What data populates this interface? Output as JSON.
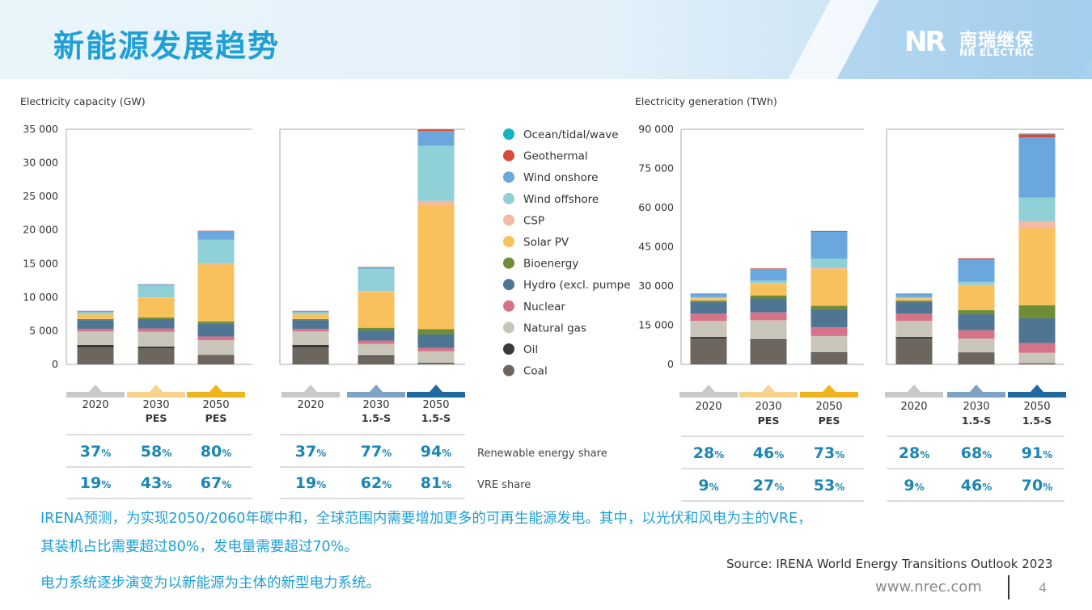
{
  "header": {
    "title": "新能源发展趋势",
    "logo_mark": "NR",
    "logo_cn": "南瑞继保",
    "logo_en": "NR ELECTRIC"
  },
  "colors": {
    "Ocean/tidal/wave": "#17b3c4",
    "Geothermal": "#d94a3a",
    "Wind onshore": "#6aa7de",
    "Wind offshore": "#8fd0d6",
    "CSP": "#f5b9a6",
    "Solar PV": "#f8c15b",
    "Bioenergy": "#6f8c36",
    "Hydro (excl. pumped)": "#4f7594",
    "Nuclear": "#d77388",
    "Natural gas": "#c9c5b9",
    "Oil": "#3a3a3a",
    "Coal": "#6c665f",
    "accent": "#1e9fd6",
    "pct": "#1b86b3"
  },
  "legend": [
    "Ocean/tidal/wave",
    "Geothermal",
    "Wind onshore",
    "Wind offshore",
    "CSP",
    "Solar PV",
    "Bioenergy",
    "Hydro (excl. pumpe",
    "Nuclear",
    "Natural gas",
    "Oil",
    "Coal"
  ],
  "row_labels": {
    "renewable": "Renewable energy share",
    "vre": "VRE share"
  },
  "chart_data": [
    {
      "type": "bar",
      "stacked": true,
      "title": "Electricity capacity (GW)",
      "yticks": [
        "35 000",
        "30 000",
        "25 000",
        "20 000",
        "15 000",
        "10 000",
        "5 000",
        "0"
      ],
      "ylim": [
        0,
        35000
      ],
      "stack_order": [
        "Coal",
        "Oil",
        "Natural gas",
        "Nuclear",
        "Hydro (excl. pumped)",
        "Bioenergy",
        "Solar PV",
        "CSP",
        "Wind offshore",
        "Wind onshore",
        "Geothermal",
        "Ocean/tidal/wave"
      ],
      "groups": [
        {
          "scenario": "PES",
          "bars": [
            {
              "year": "2020",
              "sub": "",
              "renewable": "37",
              "vre": "19",
              "values": [
                2500,
                400,
                2000,
                400,
                1300,
                150,
                700,
                20,
                300,
                200,
                15,
                0
              ]
            },
            {
              "year": "2030",
              "sub": "PES",
              "renewable": "58",
              "vre": "43",
              "values": [
                2400,
                250,
                2200,
                500,
                1400,
                250,
                2900,
                50,
                1800,
                150,
                30,
                0
              ]
            },
            {
              "year": "2050",
              "sub": "PES",
              "renewable": "80",
              "vre": "67",
              "values": [
                1300,
                100,
                2200,
                550,
                1900,
                350,
                8500,
                150,
                3500,
                1300,
                40,
                5
              ]
            }
          ]
        },
        {
          "scenario": "1.5-S",
          "bars": [
            {
              "year": "2020",
              "sub": "",
              "renewable": "37",
              "vre": "19",
              "values": [
                2500,
                400,
                2000,
                400,
                1300,
                150,
                700,
                20,
                300,
                200,
                15,
                0
              ]
            },
            {
              "year": "2030",
              "sub": "1.5-S",
              "renewable": "77",
              "vre": "62",
              "values": [
                1200,
                150,
                1700,
                500,
                1500,
                400,
                5300,
                200,
                3300,
                200,
                50,
                5
              ]
            },
            {
              "year": "2050",
              "sub": "1.5-S",
              "renewable": "94",
              "vre": "81",
              "values": [
                200,
                50,
                1700,
                500,
                2000,
                800,
                18500,
                600,
                8200,
                2200,
                200,
                50
              ]
            }
          ]
        }
      ]
    },
    {
      "type": "bar",
      "stacked": true,
      "title": "Electricity generation (TWh)",
      "yticks": [
        "90 000",
        "75 000",
        "60 000",
        "45 000",
        "30 000",
        "15 000",
        "0"
      ],
      "ylim": [
        0,
        90000
      ],
      "stack_order": [
        "Coal",
        "Oil",
        "Natural gas",
        "Nuclear",
        "Hydro (excl. pumped)",
        "Bioenergy",
        "Solar PV",
        "CSP",
        "Wind offshore",
        "Wind onshore",
        "Geothermal",
        "Ocean/tidal/wave"
      ],
      "groups": [
        {
          "scenario": "PES",
          "bars": [
            {
              "year": "2020",
              "sub": "",
              "renewable": "28",
              "vre": "9",
              "values": [
                9800,
                700,
                6200,
                2700,
                4400,
                600,
                900,
                50,
                400,
                1300,
                100,
                0
              ]
            },
            {
              "year": "2030",
              "sub": "PES",
              "renewable": "46",
              "vre": "27",
              "values": [
                9200,
                400,
                7300,
                3000,
                5300,
                1200,
                4500,
                150,
                1000,
                4500,
                200,
                0
              ]
            },
            {
              "year": "2050",
              "sub": "PES",
              "renewable": "73",
              "vre": "53",
              "values": [
                4500,
                150,
                6200,
                3400,
                6800,
                1400,
                14000,
                500,
                3500,
                10300,
                300,
                50
              ]
            }
          ]
        },
        {
          "scenario": "1.5-S",
          "bars": [
            {
              "year": "2020",
              "sub": "",
              "renewable": "28",
              "vre": "9",
              "values": [
                9800,
                700,
                6200,
                2700,
                4400,
                600,
                900,
                50,
                400,
                1300,
                100,
                0
              ]
            },
            {
              "year": "2030",
              "sub": "1.5-S",
              "renewable": "68",
              "vre": "46",
              "values": [
                4400,
                200,
                5300,
                3200,
                6100,
                1600,
                9200,
                400,
                1300,
                8500,
                400,
                50
              ]
            },
            {
              "year": "2050",
              "sub": "1.5-S",
              "renewable": "91",
              "vre": "70",
              "values": [
                400,
                50,
                4000,
                3700,
                9500,
                5000,
                29500,
                2700,
                9000,
                23000,
                1200,
                300
              ]
            }
          ]
        }
      ]
    }
  ],
  "notes": {
    "line1": "IRENA预测，为实现2050/2060年碳中和，全球范围内需要增加更多的可再生能源发电。其中，以光伏和风电为主的VRE，",
    "line2": "其装机占比需要超过80%，发电量需要超过70%。",
    "line3": "电力系统逐步演变为以新能源为主体的新型电力系统。"
  },
  "footer": {
    "source": "Source: IRENA World Energy Transitions Outlook 2023",
    "site": "www.nrec.com",
    "page": "4"
  }
}
